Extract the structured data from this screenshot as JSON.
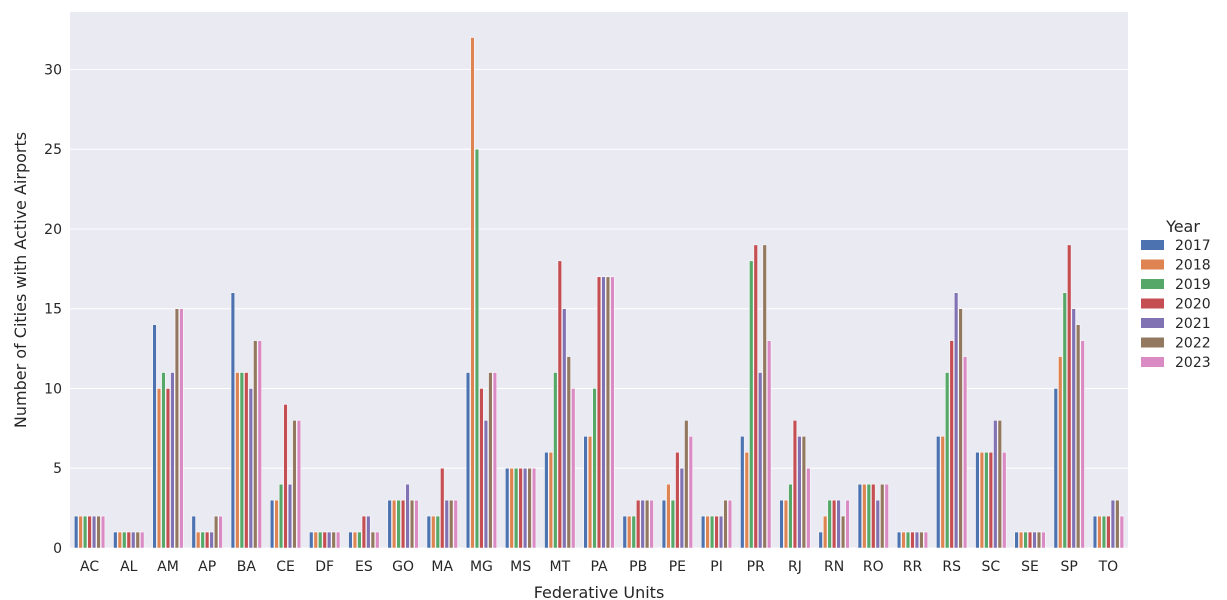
{
  "chart_data": {
    "type": "bar",
    "xlabel": "Federative Units",
    "ylabel": "Number of Cities with Active Airports",
    "ylim": [
      0,
      33.6
    ],
    "yticks": [
      0,
      5,
      10,
      15,
      20,
      25,
      30
    ],
    "grid": true,
    "legend_title": "Year",
    "legend_position": "right",
    "categories": [
      "AC",
      "AL",
      "AM",
      "AP",
      "BA",
      "CE",
      "DF",
      "ES",
      "GO",
      "MA",
      "MG",
      "MS",
      "MT",
      "PA",
      "PB",
      "PE",
      "PI",
      "PR",
      "RJ",
      "RN",
      "RO",
      "RR",
      "RS",
      "SC",
      "SE",
      "SP",
      "TO"
    ],
    "series": [
      {
        "name": "2017",
        "color": "#4c72b0",
        "values": [
          2,
          1,
          14,
          2,
          16,
          3,
          1,
          1,
          3,
          2,
          11,
          5,
          6,
          7,
          2,
          3,
          2,
          7,
          3,
          1,
          4,
          1,
          7,
          6,
          1,
          10,
          2
        ]
      },
      {
        "name": "2018",
        "color": "#dd8452",
        "values": [
          2,
          1,
          10,
          1,
          11,
          3,
          1,
          1,
          3,
          2,
          32,
          5,
          6,
          7,
          2,
          4,
          2,
          6,
          3,
          2,
          4,
          1,
          7,
          6,
          1,
          12,
          2
        ]
      },
      {
        "name": "2019",
        "color": "#55a868",
        "values": [
          2,
          1,
          11,
          1,
          11,
          4,
          1,
          1,
          3,
          2,
          25,
          5,
          11,
          10,
          2,
          3,
          2,
          18,
          4,
          3,
          4,
          1,
          11,
          6,
          1,
          16,
          2
        ]
      },
      {
        "name": "2020",
        "color": "#c44e52",
        "values": [
          2,
          1,
          10,
          1,
          11,
          9,
          1,
          2,
          3,
          5,
          10,
          5,
          18,
          17,
          3,
          6,
          2,
          19,
          8,
          3,
          4,
          1,
          13,
          6,
          1,
          19,
          2
        ]
      },
      {
        "name": "2021",
        "color": "#8172b3",
        "values": [
          2,
          1,
          11,
          1,
          10,
          4,
          1,
          2,
          4,
          3,
          8,
          5,
          15,
          17,
          3,
          5,
          2,
          11,
          7,
          3,
          3,
          1,
          16,
          8,
          1,
          15,
          3
        ]
      },
      {
        "name": "2022",
        "color": "#937860",
        "values": [
          2,
          1,
          15,
          2,
          13,
          8,
          1,
          1,
          3,
          3,
          11,
          5,
          12,
          17,
          3,
          8,
          3,
          19,
          7,
          2,
          4,
          1,
          15,
          8,
          1,
          14,
          3
        ]
      },
      {
        "name": "2023",
        "color": "#da8bc3",
        "values": [
          2,
          1,
          15,
          2,
          13,
          8,
          1,
          1,
          3,
          3,
          11,
          5,
          10,
          17,
          3,
          7,
          3,
          13,
          5,
          3,
          4,
          1,
          12,
          6,
          1,
          13,
          2
        ]
      }
    ]
  }
}
